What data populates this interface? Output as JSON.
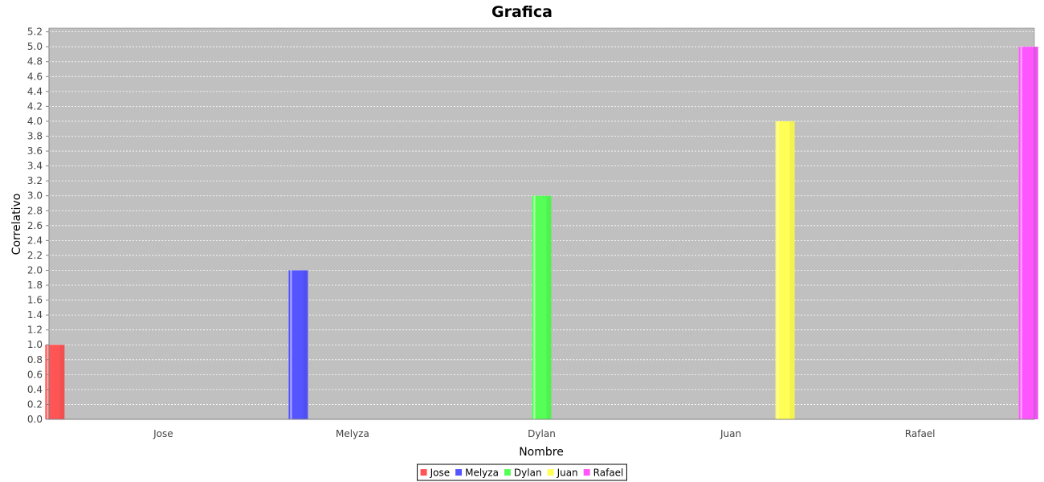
{
  "chart_data": {
    "type": "bar",
    "title": "Grafica",
    "xlabel": "Nombre",
    "ylabel": "Correlativo",
    "categories": [
      "Jose",
      "Melyza",
      "Dylan",
      "Juan",
      "Rafael"
    ],
    "series": [
      {
        "name": "Jose",
        "color": "#ff5555",
        "values": [
          1,
          null,
          null,
          null,
          null
        ]
      },
      {
        "name": "Melyza",
        "color": "#5555ff",
        "values": [
          null,
          2,
          null,
          null,
          null
        ]
      },
      {
        "name": "Dylan",
        "color": "#55ff55",
        "values": [
          null,
          null,
          3,
          null,
          null
        ]
      },
      {
        "name": "Juan",
        "color": "#ffff55",
        "values": [
          null,
          null,
          null,
          4,
          null
        ]
      },
      {
        "name": "Rafael",
        "color": "#ff55ff",
        "values": [
          null,
          null,
          null,
          null,
          5
        ]
      }
    ],
    "ylim": [
      0,
      5.25
    ],
    "yticks": [
      "0.0",
      "0.2",
      "0.4",
      "0.6",
      "0.8",
      "1.0",
      "1.2",
      "1.4",
      "1.6",
      "1.8",
      "2.0",
      "2.2",
      "2.4",
      "2.6",
      "2.8",
      "3.0",
      "3.2",
      "3.4",
      "3.6",
      "3.8",
      "4.0",
      "4.2",
      "4.4",
      "4.6",
      "4.8",
      "5.0",
      "5.2"
    ],
    "grid": true,
    "plot_background": "#c0c0c0",
    "legend_position": "bottom"
  }
}
